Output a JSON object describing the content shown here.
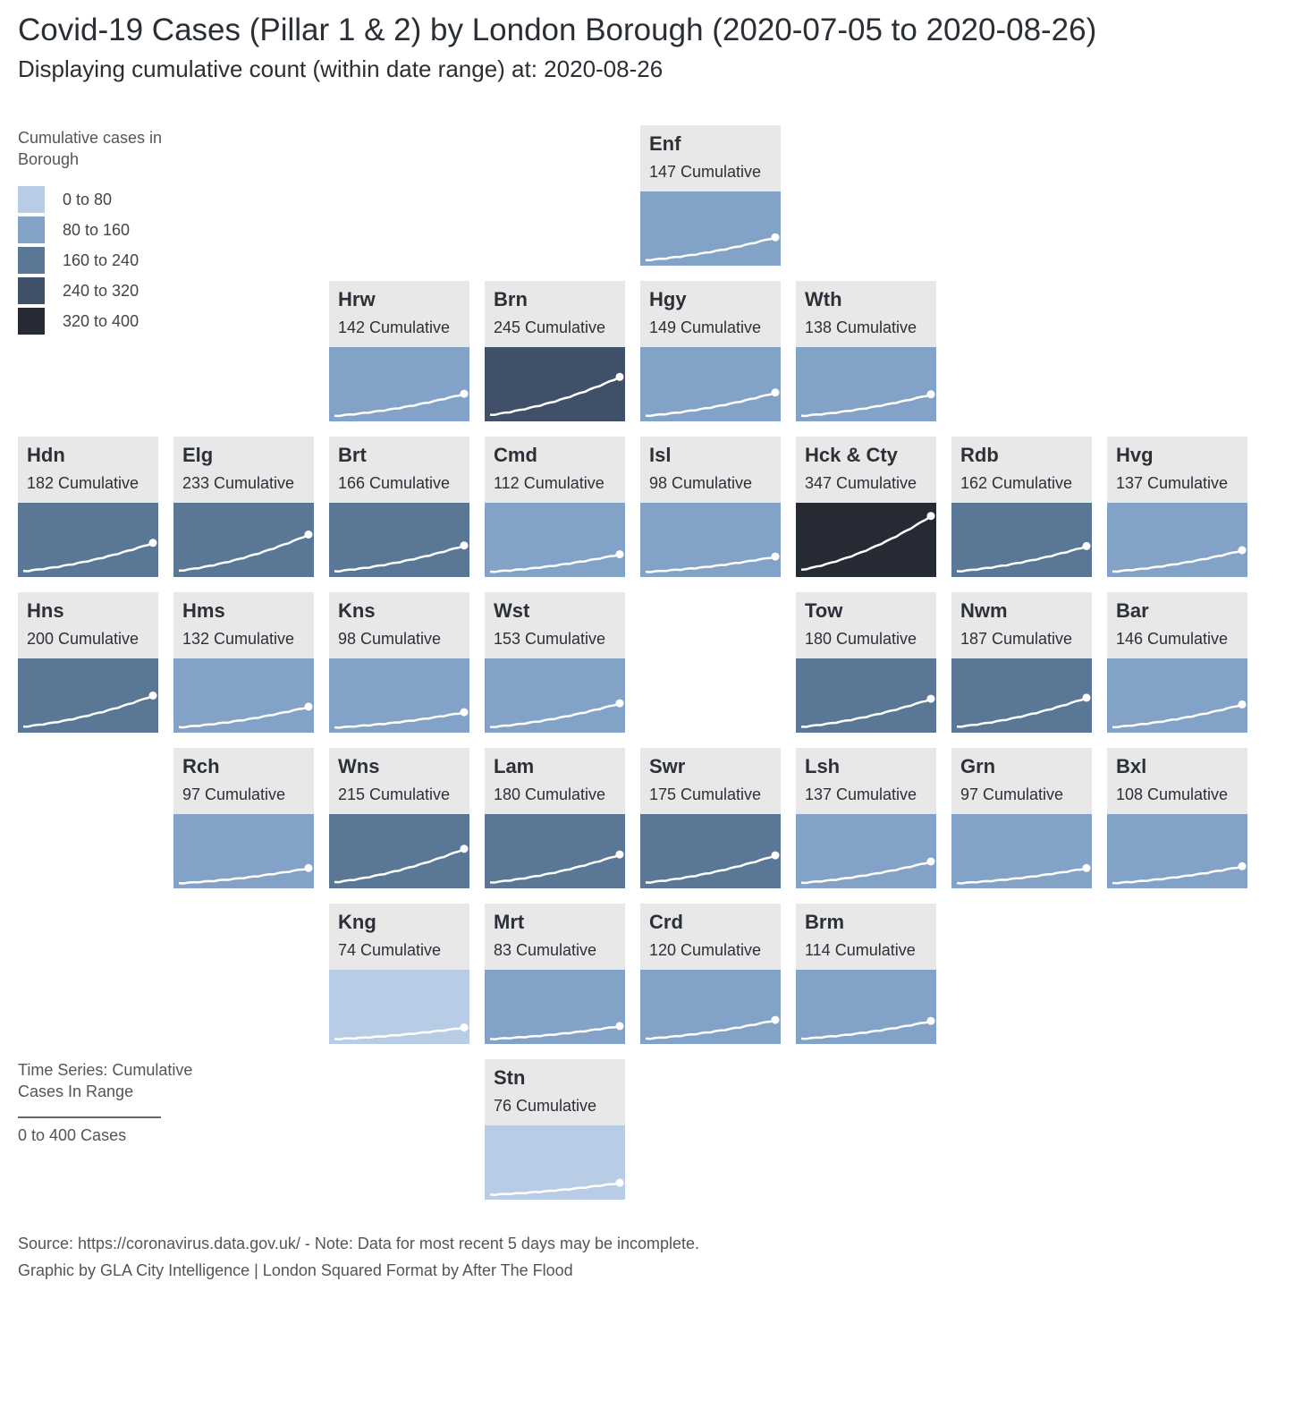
{
  "title": "Covid-19 Cases (Pillar 1 & 2) by London Borough (2020-07-05 to 2020-08-26)",
  "subtitle": "Displaying cumulative count (within date range) at: 2020-08-26",
  "legend": {
    "title": "Cumulative cases in Borough",
    "items": [
      {
        "label": "0 to 80",
        "color": "#b9cce5"
      },
      {
        "label": "80 to 160",
        "color": "#82a3c7"
      },
      {
        "label": "160 to 240",
        "color": "#5a7796"
      },
      {
        "label": "240 to 320",
        "color": "#3f5068"
      },
      {
        "label": "320 to 400",
        "color": "#252a35"
      }
    ]
  },
  "time_series_note": {
    "title": "Time Series: Cumulative Cases In Range",
    "range": "0 to 400 Cases"
  },
  "source_text": "Source: https://coronavirus.data.gov.uk/ - Note: Data for most recent 5 days may be incomplete.",
  "credit_text": "Graphic by GLA City Intelligence | London Squared Format by After The Flood",
  "value_suffix": "Cumulative",
  "chart_data": {
    "type": "tile-grid-map",
    "title": "Covid-19 Cases (Pillar 1 & 2) by London Borough (2020-07-05 to 2020-08-26)",
    "date_range": [
      "2020-07-05",
      "2020-08-26"
    ],
    "value_range": [
      0,
      400
    ],
    "boroughs": [
      {
        "code": "Enf",
        "value": 147,
        "row": 0,
        "col": 4
      },
      {
        "code": "Hrw",
        "value": 142,
        "row": 1,
        "col": 2
      },
      {
        "code": "Brn",
        "value": 245,
        "row": 1,
        "col": 3
      },
      {
        "code": "Hgy",
        "value": 149,
        "row": 1,
        "col": 4
      },
      {
        "code": "Wth",
        "value": 138,
        "row": 1,
        "col": 5
      },
      {
        "code": "Hdn",
        "value": 182,
        "row": 2,
        "col": 0
      },
      {
        "code": "Elg",
        "value": 233,
        "row": 2,
        "col": 1
      },
      {
        "code": "Brt",
        "value": 166,
        "row": 2,
        "col": 2
      },
      {
        "code": "Cmd",
        "value": 112,
        "row": 2,
        "col": 3
      },
      {
        "code": "Isl",
        "value": 98,
        "row": 2,
        "col": 4
      },
      {
        "code": "Hck & Cty",
        "value": 347,
        "row": 2,
        "col": 5
      },
      {
        "code": "Rdb",
        "value": 162,
        "row": 2,
        "col": 6
      },
      {
        "code": "Hvg",
        "value": 137,
        "row": 2,
        "col": 7
      },
      {
        "code": "Hns",
        "value": 200,
        "row": 3,
        "col": 0
      },
      {
        "code": "Hms",
        "value": 132,
        "row": 3,
        "col": 1
      },
      {
        "code": "Kns",
        "value": 98,
        "row": 3,
        "col": 2
      },
      {
        "code": "Wst",
        "value": 153,
        "row": 3,
        "col": 3
      },
      {
        "code": "Tow",
        "value": 180,
        "row": 3,
        "col": 5
      },
      {
        "code": "Nwm",
        "value": 187,
        "row": 3,
        "col": 6
      },
      {
        "code": "Bar",
        "value": 146,
        "row": 3,
        "col": 7
      },
      {
        "code": "Rch",
        "value": 97,
        "row": 4,
        "col": 1
      },
      {
        "code": "Wns",
        "value": 215,
        "row": 4,
        "col": 2
      },
      {
        "code": "Lam",
        "value": 180,
        "row": 4,
        "col": 3
      },
      {
        "code": "Swr",
        "value": 175,
        "row": 4,
        "col": 4
      },
      {
        "code": "Lsh",
        "value": 137,
        "row": 4,
        "col": 5
      },
      {
        "code": "Grn",
        "value": 97,
        "row": 4,
        "col": 6
      },
      {
        "code": "Bxl",
        "value": 108,
        "row": 4,
        "col": 7
      },
      {
        "code": "Kng",
        "value": 74,
        "row": 5,
        "col": 2
      },
      {
        "code": "Mrt",
        "value": 83,
        "row": 5,
        "col": 3
      },
      {
        "code": "Crd",
        "value": 120,
        "row": 5,
        "col": 4
      },
      {
        "code": "Brm",
        "value": 114,
        "row": 5,
        "col": 5
      },
      {
        "code": "Stn",
        "value": 76,
        "row": 6,
        "col": 3
      }
    ]
  }
}
